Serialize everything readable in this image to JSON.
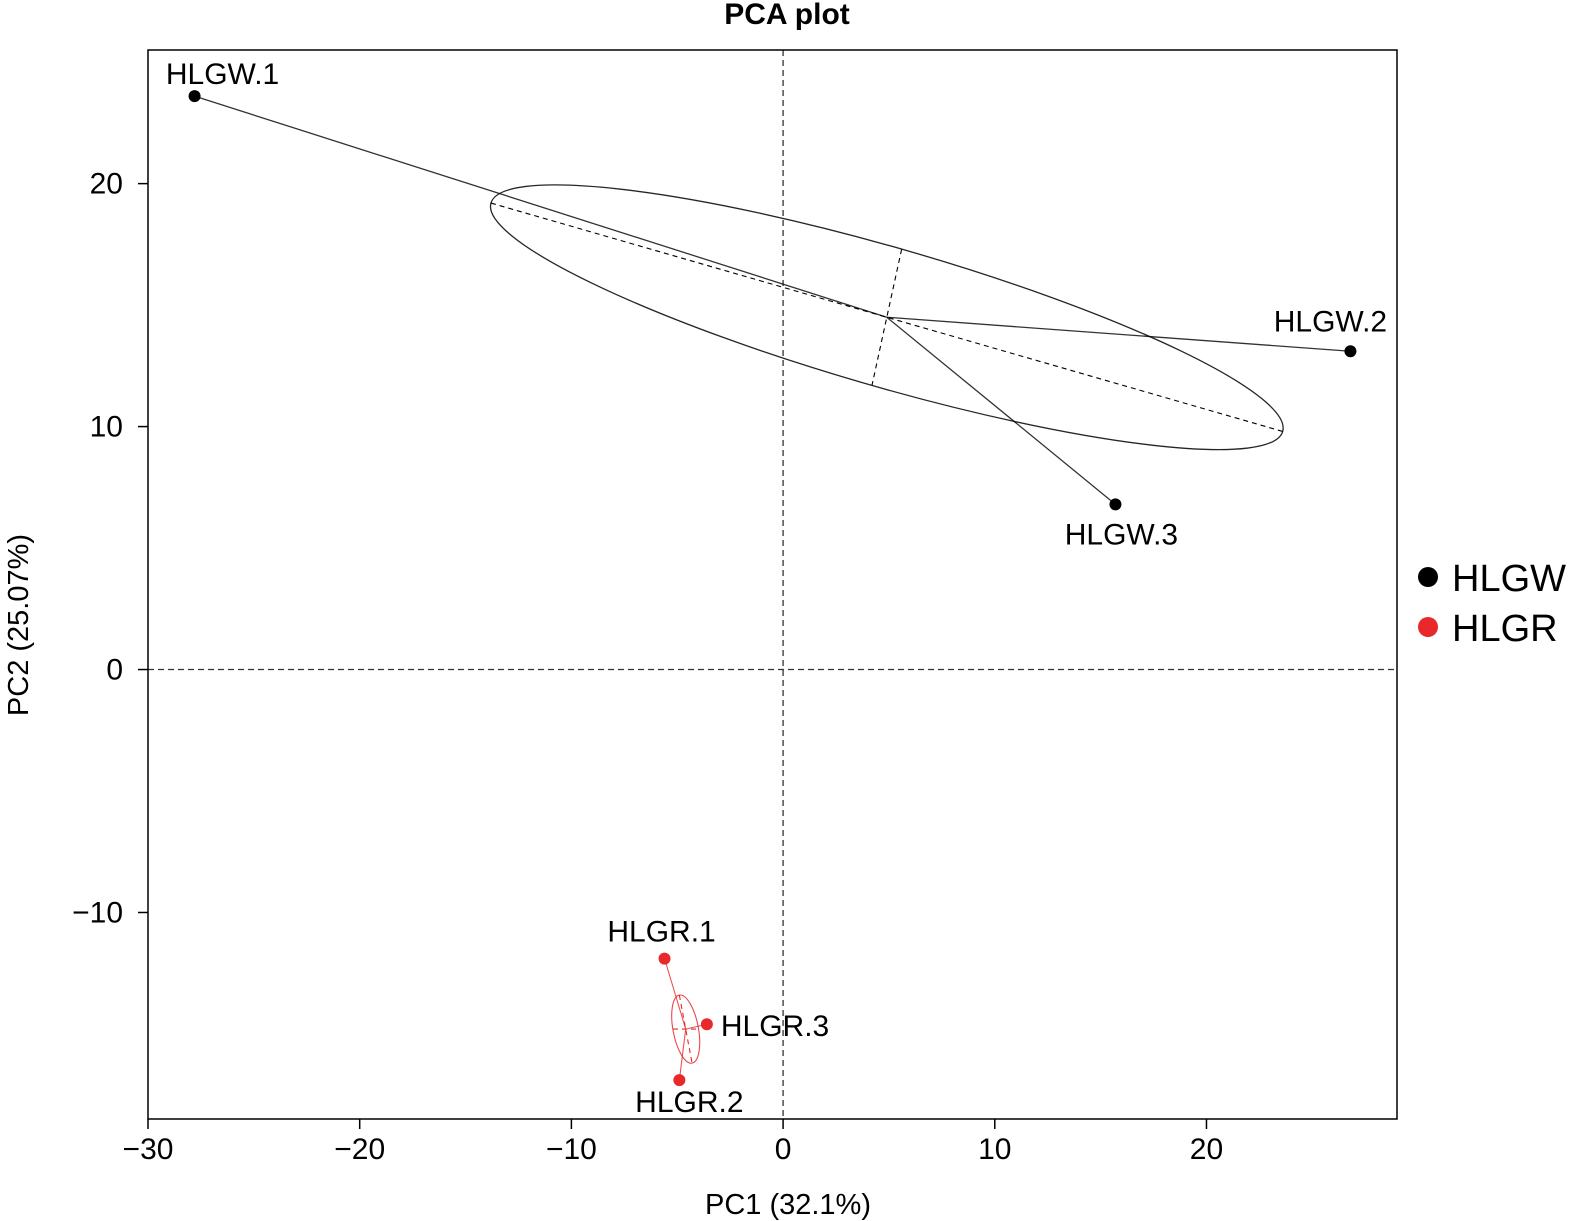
{
  "chart_data": {
    "type": "scatter",
    "title": "PCA plot",
    "xlabel": "PC1 (32.1%)",
    "ylabel": "PC2 (25.07%)",
    "xlim": [
      -30,
      29
    ],
    "ylim": [
      -18.5,
      25.5
    ],
    "xticks": [
      -30,
      -20,
      -10,
      0,
      10,
      20
    ],
    "yticks": [
      -10,
      0,
      10,
      20
    ],
    "xtick_labels": [
      "−30",
      "−20",
      "−10",
      "0",
      "10",
      "20"
    ],
    "ytick_labels": [
      "−10",
      "0",
      "10",
      "20"
    ],
    "grid": false,
    "reference_lines": {
      "x": 0,
      "y": 0
    },
    "legend_position": "right",
    "series": [
      {
        "name": "HLGW",
        "color": "#000000",
        "centroid": [
          4.9,
          14.5
        ],
        "ellipse": {
          "center": [
            4.9,
            14.5
          ],
          "major_end_a": [
            -13.8,
            19.2
          ],
          "major_end_b": [
            23.6,
            9.8
          ],
          "minor_end_a": [
            5.6,
            17.3
          ],
          "minor_end_b": [
            4.2,
            11.7
          ]
        },
        "points": [
          {
            "label": "HLGW.1",
            "x": -27.8,
            "y": 23.6
          },
          {
            "label": "HLGW.2",
            "x": 26.8,
            "y": 13.1
          },
          {
            "label": "HLGW.3",
            "x": 15.7,
            "y": 6.8
          }
        ]
      },
      {
        "name": "HLGR",
        "color": "#e8282b",
        "centroid": [
          -4.6,
          -14.8
        ],
        "ellipse": {
          "center": [
            -4.6,
            -14.8
          ],
          "major_end_a": [
            -4.9,
            -13.4
          ],
          "major_end_b": [
            -4.3,
            -16.2
          ],
          "minor_end_a": [
            -5.2,
            -14.8
          ],
          "minor_end_b": [
            -4.0,
            -14.8
          ]
        },
        "points": [
          {
            "label": "HLGR.1",
            "x": -5.6,
            "y": -11.9
          },
          {
            "label": "HLGR.2",
            "x": -4.9,
            "y": -16.9
          },
          {
            "label": "HLGR.3",
            "x": -3.6,
            "y": -14.6
          }
        ]
      }
    ]
  }
}
